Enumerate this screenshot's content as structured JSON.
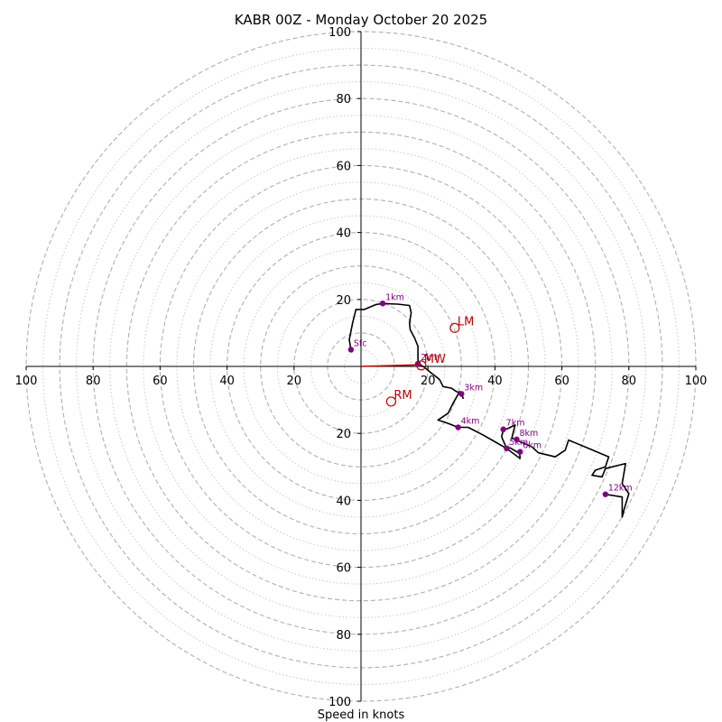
{
  "chart_data": {
    "type": "hodograph",
    "title": "KABR 00Z - Monday October 20 2025",
    "xlabel": "Speed in knots",
    "axis_range": [
      -100,
      100
    ],
    "ring_values_dashed": [
      10,
      30,
      50,
      70,
      90
    ],
    "ring_values_dotted": [
      5,
      15,
      25,
      35,
      45,
      55,
      65,
      75,
      85,
      95
    ],
    "ring_values_dashed_major": [
      20,
      40,
      60,
      80,
      100
    ],
    "x_tick_labels": [
      "100",
      "80",
      "60",
      "40",
      "20",
      "20",
      "40",
      "60",
      "80",
      "100"
    ],
    "x_tick_values": [
      -100,
      -80,
      -60,
      -40,
      -20,
      20,
      40,
      60,
      80,
      100
    ],
    "y_tick_labels": [
      "100",
      "80",
      "60",
      "40",
      "20",
      "20",
      "40",
      "60",
      "80",
      "100"
    ],
    "y_tick_values": [
      100,
      80,
      60,
      40,
      20,
      -20,
      -40,
      -60,
      -80,
      -100
    ],
    "hodograph_trace": [
      [
        -3,
        5
      ],
      [
        -3.5,
        8
      ],
      [
        -2.5,
        13
      ],
      [
        -1.5,
        17
      ],
      [
        1,
        17
      ],
      [
        4.5,
        18.5
      ],
      [
        6.5,
        18.8
      ],
      [
        11,
        18.6
      ],
      [
        14.5,
        18.2
      ],
      [
        15,
        16
      ],
      [
        14.5,
        13
      ],
      [
        14.7,
        11
      ],
      [
        16,
        8.5
      ],
      [
        17,
        6
      ],
      [
        17,
        2.5
      ],
      [
        17.1,
        0.8
      ],
      [
        19,
        -0.3
      ],
      [
        21,
        -2
      ],
      [
        23,
        -3.5
      ],
      [
        23.5,
        -4
      ],
      [
        24.5,
        -6
      ],
      [
        27,
        -6.5
      ],
      [
        28.5,
        -7.5
      ],
      [
        30,
        -8.2
      ],
      [
        30.5,
        -9.5
      ],
      [
        29.5,
        -7.5
      ],
      [
        27.5,
        -11
      ],
      [
        26,
        -14
      ],
      [
        23,
        -16
      ],
      [
        26,
        -17
      ],
      [
        29,
        -18.2
      ],
      [
        32,
        -18.2
      ],
      [
        36.5,
        -20.5
      ],
      [
        40,
        -22.5
      ],
      [
        43.5,
        -24.5
      ],
      [
        45.5,
        -26
      ],
      [
        47.5,
        -27.5
      ],
      [
        47.4,
        -26
      ],
      [
        44.5,
        -24.3
      ],
      [
        43.5,
        -24.5
      ],
      [
        42,
        -21
      ],
      [
        42.5,
        -19
      ],
      [
        44,
        -18.5
      ],
      [
        46,
        -17.5
      ],
      [
        45,
        -21.5
      ],
      [
        46.5,
        -21.8
      ],
      [
        47,
        -22.3
      ],
      [
        51,
        -24
      ],
      [
        53,
        -25.8
      ],
      [
        58,
        -27
      ],
      [
        61,
        -25
      ],
      [
        62,
        -22
      ],
      [
        68,
        -24.5
      ],
      [
        74,
        -27
      ],
      [
        73,
        -30
      ],
      [
        70,
        -31
      ],
      [
        69,
        -32.5
      ],
      [
        72,
        -33
      ],
      [
        73,
        -30.5
      ],
      [
        79,
        -29
      ],
      [
        78,
        -35
      ],
      [
        80,
        -38
      ],
      [
        78.5,
        -43
      ],
      [
        78,
        -45
      ],
      [
        78,
        -39
      ],
      [
        73,
        -38.2
      ]
    ],
    "height_markers": [
      {
        "label": "Sfc",
        "u": -3,
        "v": 5
      },
      {
        "label": "1km",
        "u": 6.5,
        "v": 18.8
      },
      {
        "label": "2km",
        "u": 17,
        "v": 0.8
      },
      {
        "label": "3km",
        "u": 30,
        "v": -8.2
      },
      {
        "label": "4km",
        "u": 29,
        "v": -18.2
      },
      {
        "label": "5km",
        "u": 43.5,
        "v": -24.5
      },
      {
        "label": "6km",
        "u": 47.5,
        "v": -25.5
      },
      {
        "label": "7km",
        "u": 42.5,
        "v": -18.8
      },
      {
        "label": "8km",
        "u": 46.5,
        "v": -21.8
      },
      {
        "label": "12km",
        "u": 73,
        "v": -38.2
      }
    ],
    "storm_motion": [
      {
        "label": "LM",
        "u": 28,
        "v": 11.5
      },
      {
        "label": "MW",
        "u": 18,
        "v": 0.3
      },
      {
        "label": "RM",
        "u": 9,
        "v": -10.5
      }
    ],
    "mean_wind_vector": {
      "u0": 0,
      "v0": 0,
      "u1": 18,
      "v1": 0.5
    },
    "colors": {
      "trace": "#000000",
      "height_marker": "#800080",
      "storm_motion": "#c00000",
      "ring": "#b0b0b0",
      "axis": "#000000"
    }
  }
}
